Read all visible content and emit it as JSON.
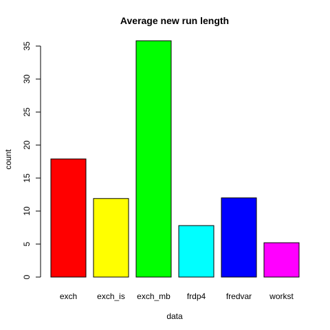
{
  "chart_data": {
    "type": "bar",
    "title": "Average new run length",
    "xlabel": "data",
    "ylabel": "count",
    "categories": [
      "exch",
      "exch_is",
      "exch_mb",
      "frdp4",
      "fredvar",
      "workst"
    ],
    "values": [
      17.9,
      11.9,
      35.8,
      7.8,
      12.0,
      5.2
    ],
    "colors": [
      "#ff0000",
      "#ffff00",
      "#00ff00",
      "#00ffff",
      "#0000ff",
      "#ff00ff"
    ],
    "ylim": [
      0,
      35
    ],
    "yticks": [
      0,
      5,
      10,
      15,
      20,
      25,
      30,
      35
    ],
    "grid": false,
    "legend": "none"
  }
}
